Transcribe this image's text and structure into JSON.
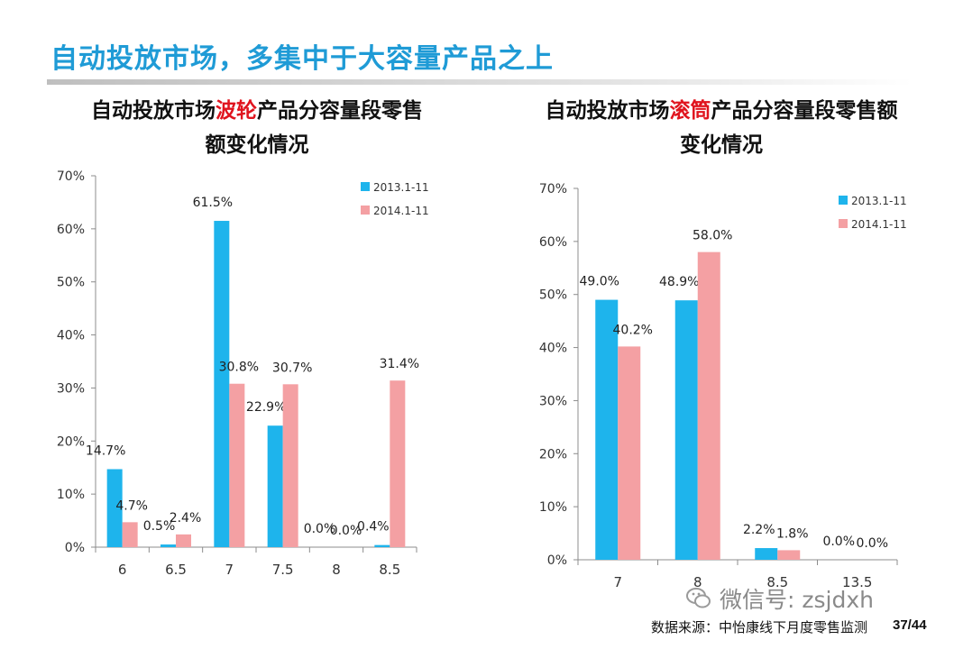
{
  "slide": {
    "title": "自动投放市场，多集中于大容量产品之上",
    "wechat_text": "微信号: zsjdxh",
    "source_text": "数据来源：中怡康线下月度零售监测",
    "page_number": "37/44"
  },
  "colors": {
    "series_2013": "#1eb4ec",
    "series_2014": "#f4a0a3",
    "highlight": "#e0141e",
    "title_blue": "#1f9bd6"
  },
  "chart_data": [
    {
      "type": "bar",
      "title_pre": "自动投放市场",
      "title_hl": "波轮",
      "title_post": "产品分容量段零售",
      "title_line2": "额变化情况",
      "categories": [
        "6",
        "6.5",
        "7",
        "7.5",
        "8",
        "8.5"
      ],
      "series": [
        {
          "name": "2013.1-11",
          "values": [
            14.7,
            0.5,
            61.5,
            22.9,
            0.0,
            0.4
          ],
          "labels": [
            "14.7%",
            "0.5%",
            "61.5%",
            "22.9%",
            "0.0%",
            "0.4%"
          ]
        },
        {
          "name": "2014.1-11",
          "values": [
            4.7,
            2.4,
            30.8,
            30.7,
            0.0,
            31.4
          ],
          "labels": [
            "4.7%",
            "2.4%",
            "30.8%",
            "30.7%",
            "0.0%",
            "31.4%"
          ]
        }
      ],
      "yticks": [
        "0%",
        "10%",
        "20%",
        "30%",
        "40%",
        "50%",
        "60%",
        "70%"
      ],
      "ylim": [
        0,
        70
      ],
      "legend": "top-right"
    },
    {
      "type": "bar",
      "title_pre": "自动投放市场",
      "title_hl": "滚筒",
      "title_post": "产品分容量段零售额",
      "title_line2": "变化情况",
      "categories": [
        "7",
        "8",
        "8.5",
        "13.5"
      ],
      "series": [
        {
          "name": "2013.1-11",
          "values": [
            49.0,
            48.9,
            2.2,
            0.0
          ],
          "labels": [
            "49.0%",
            "48.9%",
            "2.2%",
            "0.0%"
          ]
        },
        {
          "name": "2014.1-11",
          "values": [
            40.2,
            58.0,
            1.8,
            0.0
          ],
          "labels": [
            "40.2%",
            "58.0%",
            "1.8%",
            "0.0%"
          ]
        }
      ],
      "yticks": [
        "0%",
        "10%",
        "20%",
        "30%",
        "40%",
        "50%",
        "60%",
        "70%"
      ],
      "ylim": [
        0,
        70
      ],
      "legend": "top-right"
    }
  ]
}
